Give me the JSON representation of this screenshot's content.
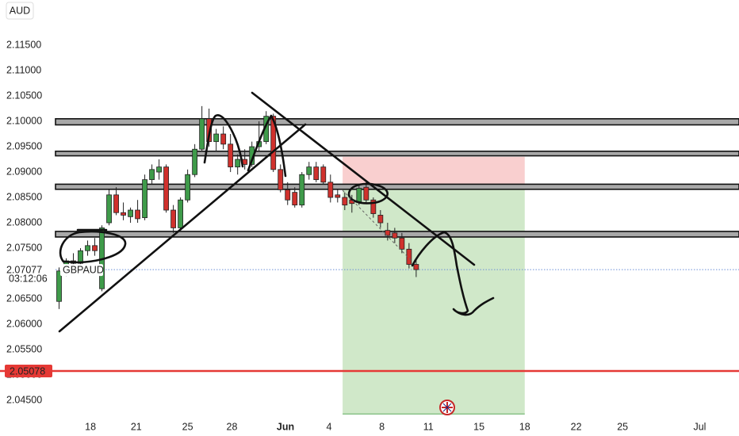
{
  "chart_data": {
    "type": "candlestick",
    "currency": "AUD",
    "symbol": "GBPAUD",
    "countdown": "03:12:06",
    "x": [
      0,
      1,
      2,
      3,
      4,
      5,
      6,
      7,
      8,
      9,
      10,
      11,
      12,
      13,
      14,
      15,
      16,
      17,
      18,
      19,
      20,
      21,
      22,
      23,
      24,
      25,
      26,
      27,
      28,
      29,
      30,
      31,
      32,
      33,
      34,
      35,
      36,
      37,
      38,
      39,
      40,
      41,
      42,
      43,
      44,
      45,
      46,
      47,
      48,
      49,
      50
    ],
    "open": [
      2.0645,
      2.0705,
      2.0725,
      2.072,
      2.0745,
      2.0755,
      2.067,
      2.08,
      2.0855,
      2.082,
      2.0812,
      2.0825,
      2.081,
      2.0885,
      2.09,
      2.091,
      2.0825,
      2.079,
      2.0845,
      2.0895,
      2.0945,
      2.1005,
      2.096,
      2.0975,
      2.0955,
      2.091,
      2.0925,
      2.0915,
      2.095,
      2.096,
      2.101,
      2.0905,
      2.0865,
      2.086,
      2.0835,
      2.0895,
      2.091,
      2.091,
      2.088,
      2.0855,
      2.085,
      2.0845,
      2.084,
      2.087,
      2.0845,
      2.0815,
      2.0785,
      2.078,
      2.077,
      2.0748,
      2.0718
    ],
    "high": [
      2.0712,
      2.073,
      2.074,
      2.075,
      2.0765,
      2.077,
      2.0795,
      2.0865,
      2.087,
      2.084,
      2.083,
      2.0845,
      2.0895,
      2.0915,
      2.0925,
      2.0915,
      2.0835,
      2.085,
      2.0905,
      2.0955,
      2.103,
      2.1025,
      2.0985,
      2.099,
      2.0975,
      2.0935,
      2.0945,
      2.096,
      2.1,
      2.102,
      2.1015,
      2.0915,
      2.088,
      2.087,
      2.09,
      2.092,
      2.092,
      2.0915,
      2.0895,
      2.0865,
      2.086,
      2.0855,
      2.0875,
      2.088,
      2.085,
      2.0825,
      2.08,
      2.079,
      2.078,
      2.076,
      2.073
    ],
    "low": [
      2.063,
      2.0695,
      2.0715,
      2.0712,
      2.0735,
      2.0735,
      2.0665,
      2.0795,
      2.0815,
      2.0805,
      2.08,
      2.08,
      2.0805,
      2.0875,
      2.0885,
      2.082,
      2.078,
      2.0785,
      2.084,
      2.089,
      2.094,
      2.095,
      2.094,
      2.0945,
      2.09,
      2.0895,
      2.0905,
      2.091,
      2.094,
      2.0955,
      2.09,
      2.086,
      2.0835,
      2.083,
      2.083,
      2.0885,
      2.088,
      2.0875,
      2.084,
      2.084,
      2.0825,
      2.082,
      2.0835,
      2.084,
      2.081,
      2.079,
      2.0765,
      2.076,
      2.074,
      2.071,
      2.0693
    ],
    "close": [
      2.0705,
      2.0725,
      2.072,
      2.0745,
      2.0755,
      2.0745,
      2.079,
      2.0855,
      2.082,
      2.0815,
      2.0825,
      2.0808,
      2.0885,
      2.0905,
      2.091,
      2.0825,
      2.079,
      2.0845,
      2.0895,
      2.0945,
      2.1005,
      2.096,
      2.0975,
      2.0955,
      2.091,
      2.0925,
      2.0915,
      2.095,
      2.096,
      2.101,
      2.0905,
      2.0865,
      2.0845,
      2.0835,
      2.0895,
      2.091,
      2.0885,
      2.088,
      2.085,
      2.085,
      2.0835,
      2.0838,
      2.0868,
      2.0845,
      2.0818,
      2.08,
      2.0775,
      2.077,
      2.0748,
      2.0718,
      2.07077
    ],
    "up_color": "#3f9b4a",
    "down_color": "#d0312d",
    "ylim": [
      2.04188,
      2.12391
    ],
    "yticks": [
      {
        "value": 2.115,
        "label": "2.11500"
      },
      {
        "value": 2.11,
        "label": "2.11000"
      },
      {
        "value": 2.105,
        "label": "2.10500"
      },
      {
        "value": 2.1,
        "label": "2.10000"
      },
      {
        "value": 2.095,
        "label": "2.09500"
      },
      {
        "value": 2.09,
        "label": "2.09000"
      },
      {
        "value": 2.085,
        "label": "2.08500"
      },
      {
        "value": 2.08,
        "label": "2.08000"
      },
      {
        "value": 2.075,
        "label": "2.07500"
      },
      {
        "value": 2.065,
        "label": "2.06500"
      },
      {
        "value": 2.06,
        "label": "2.06000"
      },
      {
        "value": 2.055,
        "label": "2.05500"
      },
      {
        "value": 2.05,
        "label": "2.05000"
      },
      {
        "value": 2.045,
        "label": "2.04500"
      }
    ],
    "xlim": [
      -0.5,
      95.2
    ],
    "xticks": [
      {
        "value": 4.4,
        "label": "18"
      },
      {
        "value": 10.8,
        "label": "21"
      },
      {
        "value": 18,
        "label": "25"
      },
      {
        "value": 24.2,
        "label": "28"
      },
      {
        "value": 31.7,
        "label": "Jun"
      },
      {
        "value": 37.8,
        "label": "4"
      },
      {
        "value": 45.2,
        "label": "8"
      },
      {
        "value": 51.7,
        "label": "11"
      },
      {
        "value": 58.8,
        "label": "15"
      },
      {
        "value": 65.2,
        "label": "18"
      },
      {
        "value": 72.4,
        "label": "22"
      },
      {
        "value": 78.9,
        "label": "25"
      },
      {
        "value": 89.7,
        "label": "Jul"
      }
    ],
    "zones": [
      [
        2.1005,
        2.0993
      ],
      [
        2.0941,
        2.0932
      ],
      [
        2.0876,
        2.0866
      ],
      [
        2.0783,
        2.0772
      ]
    ],
    "position": {
      "x_start": 39.7,
      "x_end": 65.2,
      "stop": 2.093,
      "entry": 2.0868,
      "target": 2.0423
    },
    "last_price": 2.07077,
    "alert_price": 2.05078
  }
}
